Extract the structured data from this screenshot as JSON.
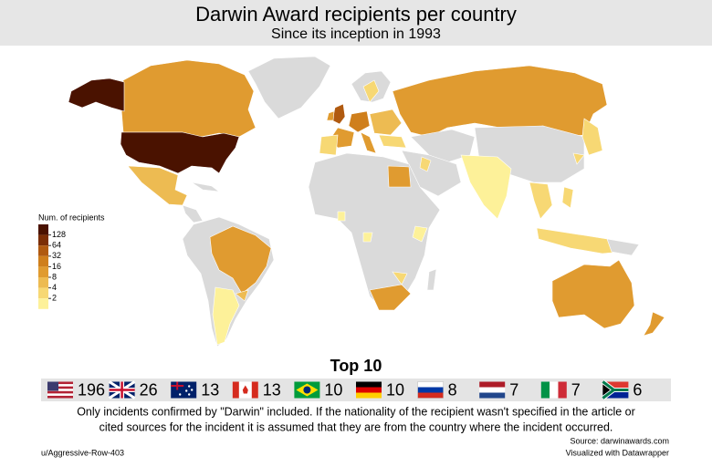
{
  "header": {
    "title": "Darwin Award recipients per country",
    "subtitle": "Since its inception in 1993"
  },
  "legend": {
    "title": "Num. of recipients",
    "ticks": [
      128,
      64,
      32,
      16,
      8,
      4,
      2
    ],
    "colors": [
      "#4a1200",
      "#7b2e06",
      "#b05a10",
      "#cf7f1c",
      "#e09b30",
      "#edbb52",
      "#f7d874",
      "#fdf199"
    ]
  },
  "top10": {
    "title": "Top 10",
    "values": [
      196,
      26,
      13,
      13,
      10,
      10,
      8,
      7,
      7,
      6
    ]
  },
  "note": {
    "lines": [
      "Only incidents confirmed by \"Darwin\" included. If the nationality of the recipient wasn't specified in the article or",
      "cited sources for the incident it is assumed that they are from the country where the incident occurred."
    ]
  },
  "source": "Source: darwinawards.com",
  "tool": "Visualized with Datawrapper",
  "author": "u/Aggressive-Row-403"
}
